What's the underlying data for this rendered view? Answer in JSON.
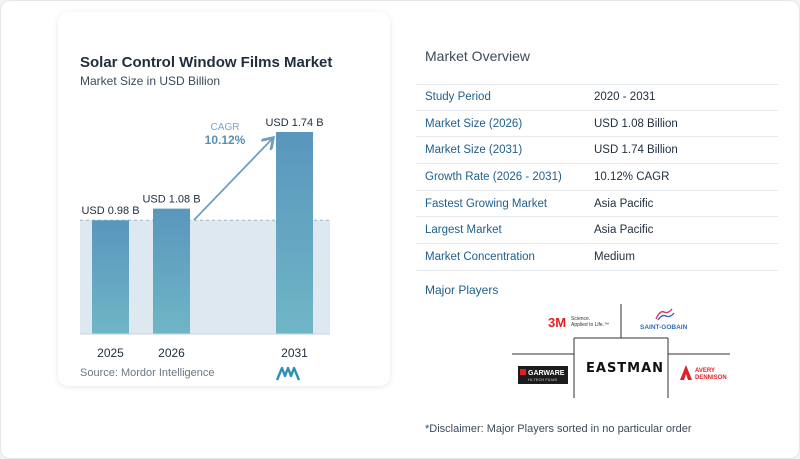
{
  "chart": {
    "title": "Solar Control Window Films Market",
    "subtitle": "Market Size in USD Billion",
    "source": "Source:  Mordor Intelligence",
    "cagr_label": "CAGR",
    "cagr_value": "10.12%",
    "bar_color_top": "#5a96bd",
    "bar_color_bottom": "#6fb6c6",
    "arrow_color": "#6f9fc0"
  },
  "chart_data": {
    "type": "bar",
    "title": "Solar Control Window Films Market",
    "subtitle": "Market Size in USD Billion",
    "categories": [
      "2025",
      "2026",
      "2031"
    ],
    "values": [
      0.98,
      1.08,
      1.74
    ],
    "data_labels": [
      "USD 0.98 B",
      "USD 1.08 B",
      "USD 1.74 B"
    ],
    "annotation": "CAGR 10.12%",
    "xlabel": "",
    "ylabel": "",
    "ylim": [
      0,
      1.74
    ],
    "grid": false
  },
  "overview": {
    "title": "Market Overview",
    "rows": [
      {
        "key": "Study Period",
        "value": "2020 - 2031"
      },
      {
        "key": "Market Size (2026)",
        "value": "USD 1.08 Billion"
      },
      {
        "key": "Market Size (2031)",
        "value": "USD 1.74 Billion"
      },
      {
        "key": "Growth Rate (2026 - 2031)",
        "value": "10.12% CAGR"
      },
      {
        "key": "Fastest Growing Market",
        "value": "Asia Pacific"
      },
      {
        "key": "Largest Market",
        "value": "Asia Pacific"
      },
      {
        "key": "Market Concentration",
        "value": "Medium"
      }
    ]
  },
  "players": {
    "title": "Major Players",
    "logos": {
      "threem": "3M",
      "threem_tag": "Science.\nApplied to Life.™",
      "saint_gobain": "SAINT-GOBAIN",
      "garware": "GARWARE",
      "garware_tag": "HI-TECH FILMS",
      "eastman": "EASTMAN",
      "avery_1": "AVERY",
      "avery_2": "DENNISON"
    },
    "disclaimer": "*Disclaimer: Major Players sorted in no particular order"
  }
}
